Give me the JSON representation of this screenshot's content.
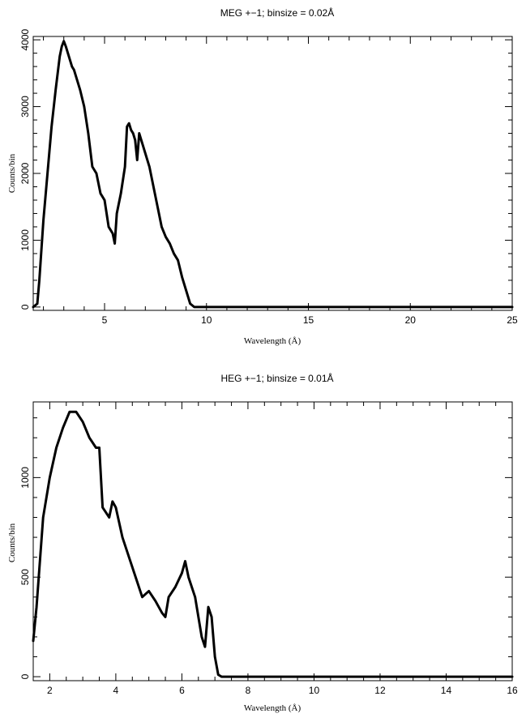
{
  "chart_data": [
    {
      "type": "line",
      "title": "MEG +−1; binsize = 0.02Å",
      "xlabel": "Wavelength (Å)",
      "ylabel": "Counts/bin",
      "xlim": [
        1.5,
        25
      ],
      "ylim": [
        -50,
        4050
      ],
      "xticks": [
        5,
        10,
        15,
        20,
        25
      ],
      "yticks": [
        0,
        1000,
        2000,
        3000,
        4000
      ],
      "grid": false,
      "series": [
        {
          "color": "#000000",
          "x": [
            1.5,
            1.7,
            1.8,
            2.0,
            2.2,
            2.4,
            2.6,
            2.8,
            2.9,
            3.0,
            3.1,
            3.2,
            3.3,
            3.4,
            3.5,
            3.6,
            3.8,
            4.0,
            4.2,
            4.4,
            4.6,
            4.8,
            5.0,
            5.2,
            5.4,
            5.5,
            5.6,
            5.8,
            6.0,
            6.1,
            6.2,
            6.3,
            6.4,
            6.5,
            6.6,
            6.7,
            6.8,
            7.0,
            7.2,
            7.4,
            7.6,
            7.8,
            8.0,
            8.2,
            8.4,
            8.6,
            8.8,
            9.0,
            9.2,
            9.4,
            10.0,
            15.0,
            20.0,
            25.0
          ],
          "y": [
            0,
            50,
            400,
            1300,
            2000,
            2700,
            3250,
            3750,
            3900,
            3980,
            3900,
            3800,
            3700,
            3600,
            3550,
            3450,
            3250,
            3000,
            2600,
            2100,
            2000,
            1700,
            1600,
            1200,
            1100,
            950,
            1400,
            1700,
            2100,
            2700,
            2750,
            2650,
            2600,
            2500,
            2200,
            2600,
            2500,
            2300,
            2100,
            1800,
            1500,
            1200,
            1050,
            950,
            800,
            700,
            450,
            250,
            50,
            0,
            0,
            0,
            0,
            0
          ]
        }
      ]
    },
    {
      "type": "line",
      "title": "HEG +−1; binsize = 0.01Å",
      "xlabel": "Wavelength (Å)",
      "ylabel": "Counts/bin",
      "xlim": [
        1.5,
        16
      ],
      "ylim": [
        -20,
        1380
      ],
      "xticks": [
        2,
        4,
        6,
        8,
        10,
        12,
        14,
        16
      ],
      "yticks": [
        0,
        500,
        1000
      ],
      "grid": false,
      "series": [
        {
          "color": "#000000",
          "x": [
            1.5,
            1.6,
            1.8,
            2.0,
            2.2,
            2.4,
            2.6,
            2.8,
            3.0,
            3.2,
            3.4,
            3.5,
            3.6,
            3.8,
            3.9,
            4.0,
            4.2,
            4.4,
            4.6,
            4.8,
            5.0,
            5.2,
            5.4,
            5.5,
            5.6,
            5.8,
            6.0,
            6.1,
            6.2,
            6.4,
            6.6,
            6.7,
            6.8,
            6.9,
            7.0,
            7.1,
            7.2,
            8.0,
            10.0,
            12.0,
            14.0,
            16.0
          ],
          "y": [
            180,
            350,
            800,
            1000,
            1150,
            1250,
            1330,
            1330,
            1280,
            1200,
            1150,
            1150,
            850,
            800,
            880,
            850,
            700,
            600,
            500,
            400,
            430,
            380,
            320,
            300,
            400,
            450,
            520,
            580,
            500,
            400,
            200,
            150,
            350,
            300,
            100,
            10,
            0,
            0,
            0,
            0,
            0,
            0
          ]
        }
      ]
    }
  ]
}
